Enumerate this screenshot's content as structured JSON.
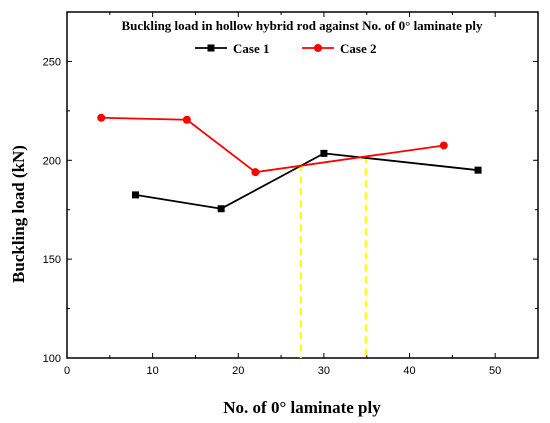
{
  "chart_data": {
    "type": "line",
    "title": "Buckling load in hollow hybrid rod against No. of 0° laminate ply",
    "xlabel": "No. of 0° laminate ply",
    "ylabel": "Buckling load (kN)",
    "xlim": [
      0,
      55
    ],
    "ylim": [
      100,
      275
    ],
    "xticks": [
      0,
      10,
      20,
      30,
      40,
      50
    ],
    "yticks": [
      100,
      150,
      200,
      250
    ],
    "grid": false,
    "legend_position": "top-center",
    "series": [
      {
        "name": "Case 1",
        "color": "#000000",
        "marker": "square",
        "x": [
          8,
          18,
          30,
          48
        ],
        "y": [
          182.5,
          175.5,
          203.5,
          195
        ]
      },
      {
        "name": "Case 2",
        "color": "#ff0000",
        "marker": "circle",
        "x": [
          4,
          14,
          22,
          44
        ],
        "y": [
          221.5,
          220.5,
          194,
          207.5
        ]
      }
    ],
    "annotations": [
      {
        "type": "vertical-dashed-line",
        "color": "#ffff00",
        "x": 27.3,
        "y_top": 198
      },
      {
        "type": "vertical-dashed-line",
        "color": "#ffff00",
        "x": 34.9,
        "y_top": 202
      }
    ]
  }
}
